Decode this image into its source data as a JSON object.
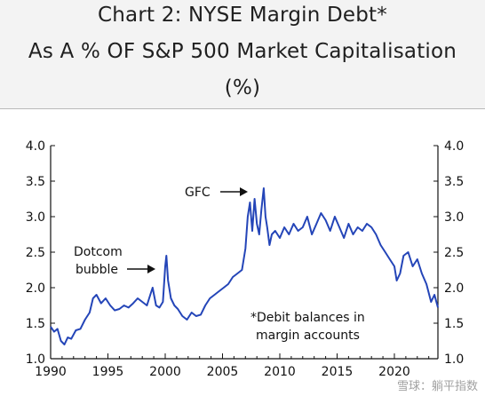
{
  "header": {
    "line1": "Chart 2: NYSE Margin Debt*",
    "line2": "As A % OF S&P 500 Market Capitalisation",
    "line3": "(%)"
  },
  "annotations": {
    "gfc": "GFC",
    "dotcom_line1": "Dotcom",
    "dotcom_line2": "bubble",
    "note_line1": "*Debit balances in",
    "note_line2": "margin accounts"
  },
  "watermark": "雪球：躺平指数",
  "chart_data": {
    "type": "line",
    "title": "Chart 2: NYSE Margin Debt* As A % OF S&P 500 Market Capitalisation (%)",
    "xlim": [
      1990,
      2023.8
    ],
    "ylim": [
      1.0,
      4.0
    ],
    "x_ticks": [
      "1990",
      "1995",
      "2000",
      "2005",
      "2010",
      "2015",
      "2020"
    ],
    "y_ticks": [
      "1.0",
      "1.5",
      "2.0",
      "2.5",
      "3.0",
      "3.5",
      "4.0"
    ],
    "grid": false,
    "line_color": "#2445b8",
    "series": [
      {
        "x": [
          1990.0,
          1990.3,
          1990.6,
          1990.9,
          1991.2,
          1991.5,
          1991.8,
          1992.2,
          1992.6,
          1993.0,
          1993.4,
          1993.7,
          1994.0,
          1994.4,
          1994.8,
          1995.2,
          1995.6,
          1996.0,
          1996.4,
          1996.8,
          1997.2,
          1997.6,
          1998.0,
          1998.4,
          1998.7,
          1998.9,
          1999.2,
          1999.5,
          1999.8,
          2000.0,
          2000.1,
          2000.25,
          2000.5,
          2000.8,
          2001.1,
          2001.5,
          2001.9,
          2002.3,
          2002.7,
          2003.1,
          2003.5,
          2003.9,
          2004.3,
          2004.7,
          2005.1,
          2005.5,
          2005.9,
          2006.3,
          2006.7,
          2007.0,
          2007.2,
          2007.4,
          2007.6,
          2007.8,
          2008.0,
          2008.2,
          2008.4,
          2008.6,
          2008.75,
          2008.9,
          2009.1,
          2009.3,
          2009.6,
          2010.0,
          2010.4,
          2010.8,
          2011.2,
          2011.6,
          2012.0,
          2012.4,
          2012.8,
          2013.2,
          2013.6,
          2014.0,
          2014.4,
          2014.8,
          2015.2,
          2015.6,
          2016.0,
          2016.4,
          2016.8,
          2017.2,
          2017.6,
          2018.0,
          2018.4,
          2018.8,
          2019.2,
          2019.6,
          2020.0,
          2020.2,
          2020.5,
          2020.8,
          2021.2,
          2021.6,
          2022.0,
          2022.4,
          2022.8,
          2023.2,
          2023.5,
          2023.8
        ],
        "y": [
          1.45,
          1.38,
          1.42,
          1.25,
          1.2,
          1.3,
          1.28,
          1.4,
          1.42,
          1.55,
          1.65,
          1.85,
          1.9,
          1.78,
          1.85,
          1.75,
          1.68,
          1.7,
          1.75,
          1.72,
          1.78,
          1.85,
          1.8,
          1.75,
          1.9,
          2.0,
          1.75,
          1.72,
          1.8,
          2.3,
          2.45,
          2.1,
          1.85,
          1.75,
          1.7,
          1.6,
          1.55,
          1.65,
          1.6,
          1.62,
          1.75,
          1.85,
          1.9,
          1.95,
          2.0,
          2.05,
          2.15,
          2.2,
          2.25,
          2.55,
          3.0,
          3.2,
          2.8,
          3.25,
          2.9,
          2.75,
          3.1,
          3.4,
          3.0,
          2.85,
          2.6,
          2.75,
          2.8,
          2.7,
          2.85,
          2.75,
          2.9,
          2.8,
          2.85,
          3.0,
          2.75,
          2.9,
          3.05,
          2.95,
          2.8,
          3.0,
          2.85,
          2.7,
          2.9,
          2.75,
          2.85,
          2.8,
          2.9,
          2.85,
          2.75,
          2.6,
          2.5,
          2.4,
          2.3,
          2.1,
          2.2,
          2.45,
          2.5,
          2.3,
          2.4,
          2.2,
          2.05,
          1.8,
          1.9,
          1.72
        ]
      }
    ]
  }
}
